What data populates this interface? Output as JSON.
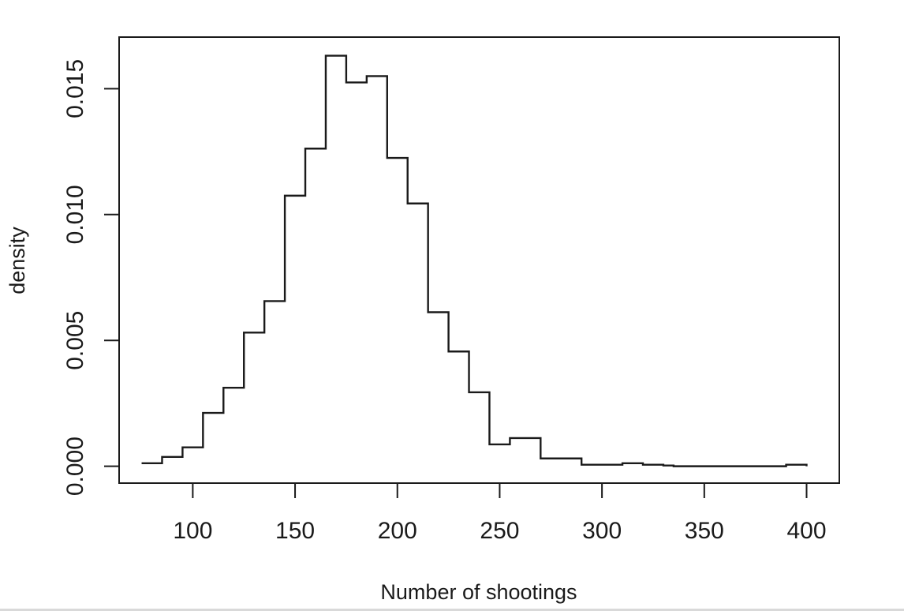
{
  "chart_data": {
    "type": "line",
    "style": "step",
    "title": "",
    "xlabel": "Number of shootings",
    "ylabel": "density",
    "xlim": [
      64,
      416
    ],
    "ylim": [
      -0.00067,
      0.01705
    ],
    "xticks": [
      100,
      150,
      200,
      250,
      300,
      350,
      400
    ],
    "xtick_labels": [
      "100",
      "150",
      "200",
      "250",
      "300",
      "350",
      "400"
    ],
    "yticks": [
      0.0,
      0.005,
      0.01,
      0.015
    ],
    "ytick_labels": [
      "0.000",
      "0.005",
      "0.010",
      "0.015"
    ],
    "grid": false,
    "legend": "none",
    "line_color": "#1a1a1a",
    "series": [
      {
        "x": [
          75,
          80,
          85,
          90,
          95,
          100,
          105,
          110,
          115,
          120,
          125,
          130,
          135,
          140,
          145,
          150,
          155,
          160,
          165,
          170,
          175,
          180,
          185,
          190,
          195,
          200,
          205,
          210,
          215,
          220,
          225,
          230,
          235,
          240,
          245,
          250,
          255,
          260,
          270,
          280,
          290,
          300,
          310,
          320,
          330,
          335,
          340,
          345,
          350,
          360,
          370,
          380,
          390,
          400
        ],
        "values": [
          0.00012,
          0.00012,
          0.00037,
          0.00037,
          0.00075,
          0.00075,
          0.00212,
          0.00212,
          0.00312,
          0.00312,
          0.00531,
          0.00531,
          0.00656,
          0.00656,
          0.01075,
          0.01075,
          0.01262,
          0.01262,
          0.01631,
          0.01631,
          0.01525,
          0.01525,
          0.0155,
          0.0155,
          0.01225,
          0.01225,
          0.01044,
          0.01044,
          0.00612,
          0.00612,
          0.00456,
          0.00456,
          0.00294,
          0.00294,
          0.00087,
          0.00087,
          0.00112,
          0.00112,
          0.00031,
          0.00031,
          6e-05,
          6e-05,
          0.00012,
          6e-05,
          3e-05,
          0.0,
          0.0,
          0.0,
          0.0,
          0.0,
          0.0,
          0.0,
          6e-05,
          0.0
        ]
      }
    ]
  }
}
